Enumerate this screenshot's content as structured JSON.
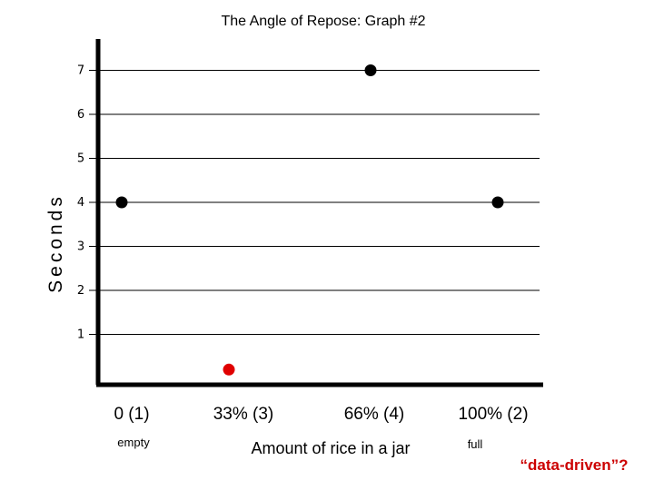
{
  "chart_data": {
    "type": "scatter",
    "title": "The Angle of Repose: Graph #2",
    "ylabel": "Seconds",
    "xlabel": "Amount of rice in a jar",
    "categories": [
      "0 (1)",
      "33% (3)",
      "66% (4)",
      "100% (2)"
    ],
    "x_sublabels": {
      "empty": "empty",
      "full": "full"
    },
    "yticks": [
      1,
      2,
      3,
      4,
      5,
      6,
      7
    ],
    "ylim": [
      0.1,
      7.5
    ],
    "grid": true,
    "points": [
      {
        "category": "0 (1)",
        "y": 4,
        "color": "#000000"
      },
      {
        "category": "33% (3)",
        "y": 0.2,
        "color": "#e00000"
      },
      {
        "category": "66% (4)",
        "y": 7,
        "color": "#000000"
      },
      {
        "category": "100% (2)",
        "y": 4,
        "color": "#000000"
      }
    ],
    "annotation": "“data-driven”?",
    "annotation_color": "#cc0000"
  }
}
